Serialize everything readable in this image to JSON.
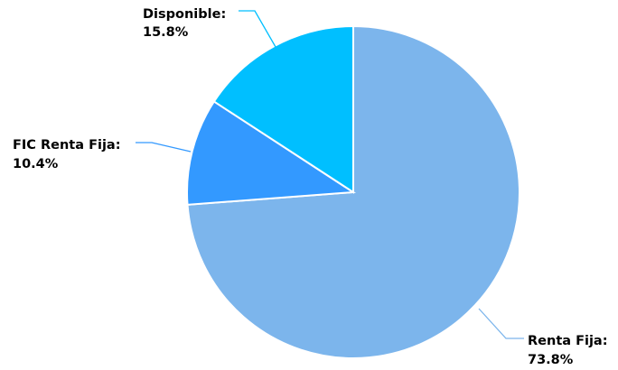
{
  "chart_data": {
    "type": "pie",
    "slices": [
      {
        "label": "Renta Fija:",
        "value": 73.8,
        "value_text": "73.8%",
        "color": "#7cb5ec"
      },
      {
        "label": "FIC Renta Fija:",
        "value": 10.4,
        "value_text": "10.4%",
        "color": "#3399ff"
      },
      {
        "label": "Disponible:",
        "value": 15.8,
        "value_text": "15.8%",
        "color": "#00bfff"
      }
    ]
  }
}
